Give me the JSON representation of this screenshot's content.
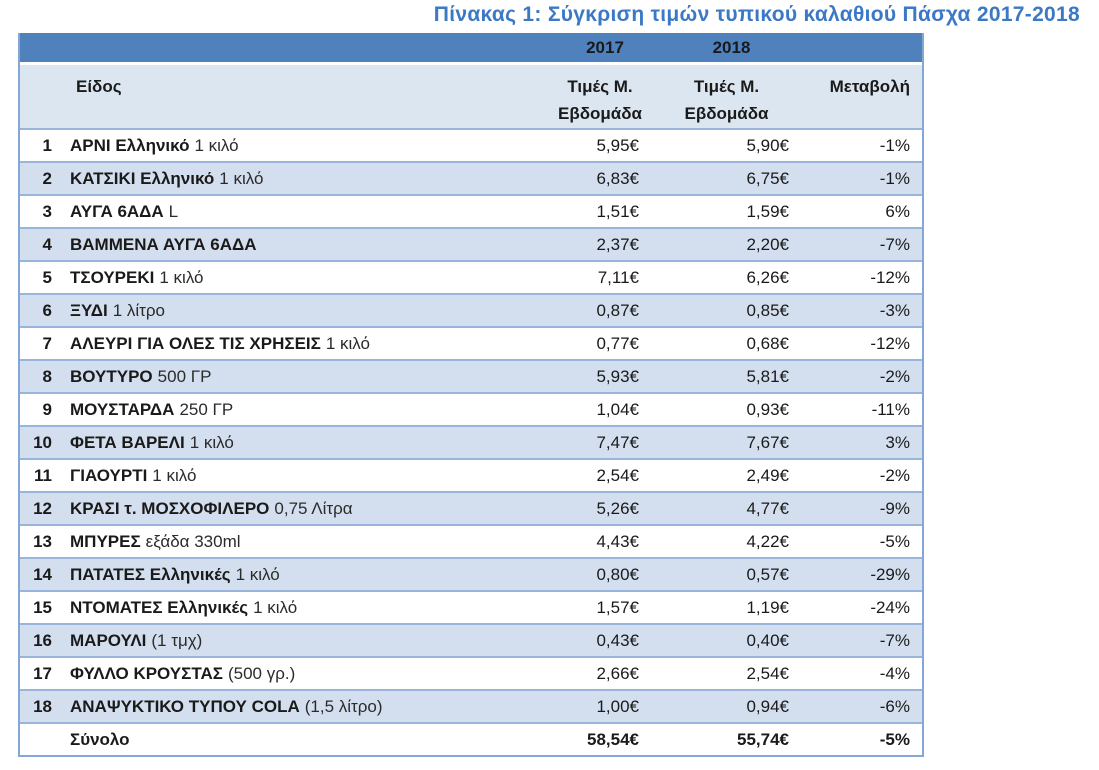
{
  "title": "Πίνακας 1: Σύγκριση τιμών τυπικού καλαθιού Πάσχα 2017-2018",
  "table": {
    "year_headers": [
      "2017",
      "2018"
    ],
    "column_headers": {
      "item": "Είδος",
      "price_2017": "Τιμές Μ.\nΕβδομάδα",
      "price_2018": "Τιμές Μ.\nΕβδομάδα",
      "change": "Μεταβολή"
    },
    "rows": [
      {
        "num": "1",
        "name": "ΑΡΝΙ Ελληνικό",
        "detail": "1 κιλό",
        "p2017": "5,95€",
        "p2018": "5,90€",
        "change": "-1%"
      },
      {
        "num": "2",
        "name": "ΚΑΤΣΙΚΙ Ελληνικό",
        "detail": "1 κιλό",
        "p2017": "6,83€",
        "p2018": "6,75€",
        "change": "-1%"
      },
      {
        "num": "3",
        "name": "ΑΥΓΑ 6ΑΔΑ",
        "detail": "L",
        "p2017": "1,51€",
        "p2018": "1,59€",
        "change": "6%"
      },
      {
        "num": "4",
        "name": "ΒΑΜΜΕΝΑ ΑΥΓΑ 6ΑΔΑ",
        "detail": "",
        "p2017": "2,37€",
        "p2018": "2,20€",
        "change": "-7%"
      },
      {
        "num": "5",
        "name": "ΤΣΟΥΡΕΚΙ",
        "detail": "1 κιλό",
        "p2017": "7,11€",
        "p2018": "6,26€",
        "change": "-12%"
      },
      {
        "num": "6",
        "name": "ΞΥΔΙ",
        "detail": "1 λίτρο",
        "p2017": "0,87€",
        "p2018": "0,85€",
        "change": "-3%"
      },
      {
        "num": "7",
        "name": "ΑΛΕΥΡΙ ΓΙΑ ΟΛΕΣ ΤΙΣ ΧΡΗΣΕΙΣ",
        "detail": "1 κιλό",
        "p2017": "0,77€",
        "p2018": "0,68€",
        "change": "-12%"
      },
      {
        "num": "8",
        "name": "ΒΟΥΤΥΡΟ",
        "detail": "500 ΓΡ",
        "p2017": "5,93€",
        "p2018": "5,81€",
        "change": "-2%"
      },
      {
        "num": "9",
        "name": "ΜΟΥΣΤΑΡΔΑ",
        "detail": "250 ΓΡ",
        "p2017": "1,04€",
        "p2018": "0,93€",
        "change": "-11%"
      },
      {
        "num": "10",
        "name": "ΦΕΤΑ ΒΑΡΕΛΙ",
        "detail": "1 κιλό",
        "p2017": "7,47€",
        "p2018": "7,67€",
        "change": "3%"
      },
      {
        "num": "11",
        "name": "ΓΙΑΟΥΡΤΙ",
        "detail": "1 κιλό",
        "p2017": "2,54€",
        "p2018": "2,49€",
        "change": "-2%"
      },
      {
        "num": "12",
        "name": "ΚΡΑΣΙ τ. ΜΟΣΧΟΦΙΛΕΡΟ",
        "detail": "0,75 Λίτρα",
        "p2017": "5,26€",
        "p2018": "4,77€",
        "change": "-9%"
      },
      {
        "num": "13",
        "name": "ΜΠΥΡΕΣ",
        "detail": "εξάδα 330ml",
        "p2017": "4,43€",
        "p2018": "4,22€",
        "change": "-5%"
      },
      {
        "num": "14",
        "name": "ΠΑΤΑΤΕΣ Ελληνικές",
        "detail": "1 κιλό",
        "p2017": "0,80€",
        "p2018": "0,57€",
        "change": "-29%"
      },
      {
        "num": "15",
        "name": "ΝΤΟΜΑΤΕΣ Ελληνικές",
        "detail": "1 κιλό",
        "p2017": "1,57€",
        "p2018": "1,19€",
        "change": "-24%"
      },
      {
        "num": "16",
        "name": "ΜΑΡΟΥΛΙ",
        "detail": "(1 τμχ)",
        "p2017": "0,43€",
        "p2018": "0,40€",
        "change": "-7%"
      },
      {
        "num": "17",
        "name": "ΦΥΛΛΟ ΚΡΟΥΣΤΑΣ",
        "detail": "(500 γρ.)",
        "p2017": "2,66€",
        "p2018": "2,54€",
        "change": "-4%"
      },
      {
        "num": "18",
        "name": "ΑΝΑΨΥΚΤΙΚΟ ΤΥΠΟΥ COLA",
        "detail": "(1,5 λίτρο)",
        "p2017": "1,00€",
        "p2018": "0,94€",
        "change": "-6%"
      }
    ],
    "total": {
      "label": "Σύνολο",
      "p2017": "58,54€",
      "p2018": "55,74€",
      "change": "-5%"
    }
  },
  "colors": {
    "title_blue": "#3B79C4",
    "band_blue": "#4F81BD",
    "header_bg": "#DCE6F1",
    "stripe_bg": "#D3DFEF",
    "row_border": "#9AB5DB",
    "outer_border": "#84A7D3",
    "text": "#1A1A1A"
  }
}
